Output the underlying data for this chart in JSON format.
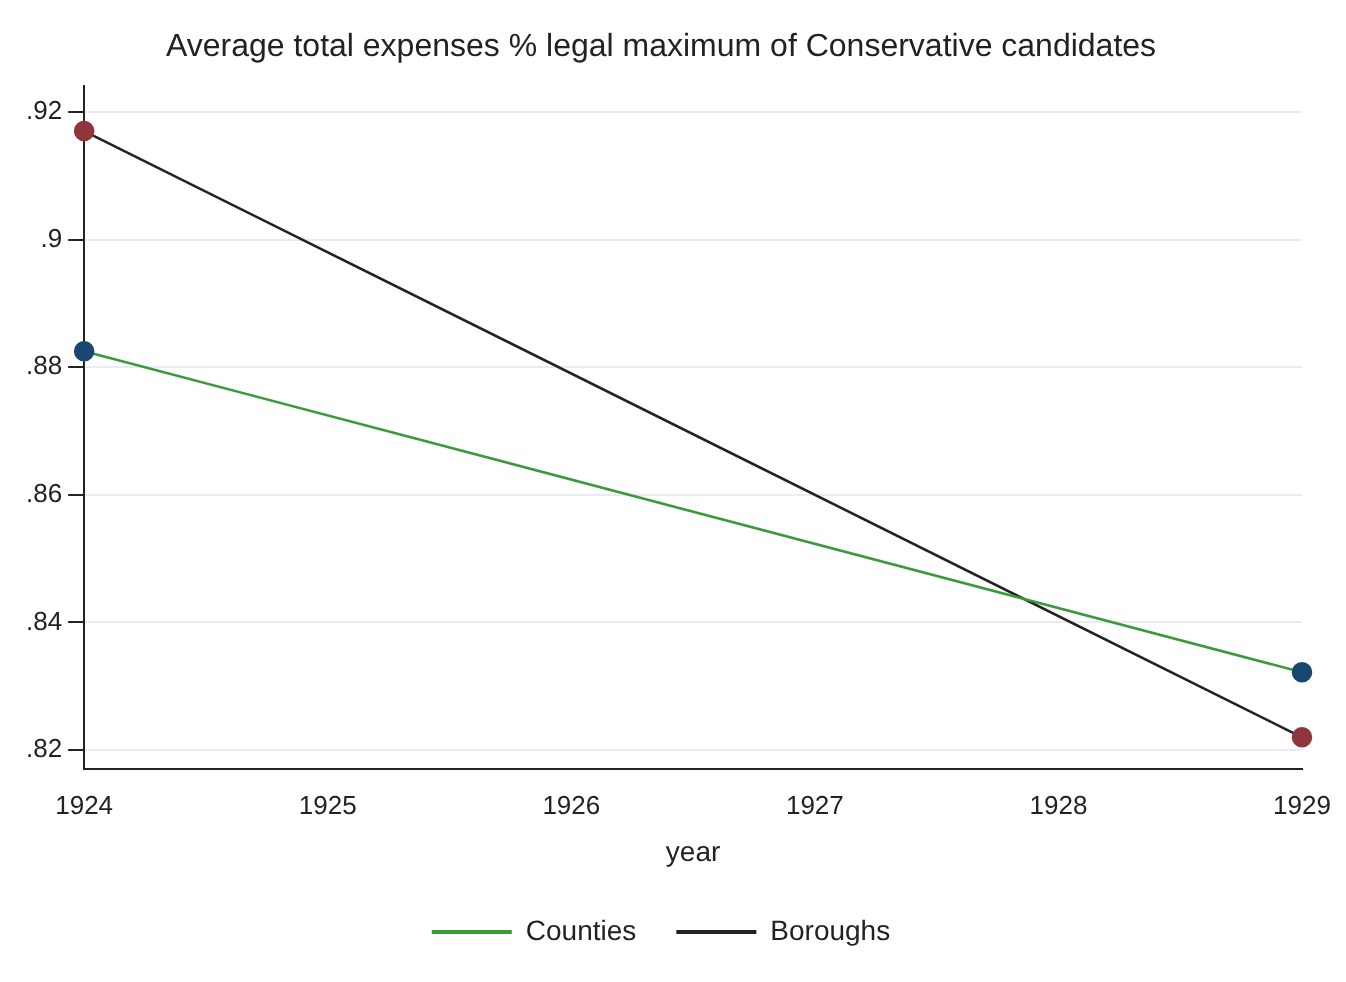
{
  "chart_data": {
    "type": "line",
    "title": "Average total expenses % legal maximum of Conservative candidates",
    "xlabel": "year",
    "x": [
      1924,
      1929
    ],
    "xlim": [
      1924,
      1929
    ],
    "xticks": [
      1924,
      1925,
      1926,
      1927,
      1928,
      1929
    ],
    "ylim": [
      0.817,
      0.924
    ],
    "yticks": [
      {
        "value": 0.82,
        "label": ".82"
      },
      {
        "value": 0.84,
        "label": ".84"
      },
      {
        "value": 0.86,
        "label": ".86"
      },
      {
        "value": 0.88,
        "label": ".88"
      },
      {
        "value": 0.9,
        "label": ".9"
      },
      {
        "value": 0.92,
        "label": ".92"
      }
    ],
    "series": [
      {
        "name": "Counties",
        "color": "#3a9a3a",
        "colors": [
          "#1a476f",
          "#1a476f"
        ],
        "values": [
          0.8825,
          0.8322
        ]
      },
      {
        "name": "Boroughs",
        "color": "#222222",
        "colors": [
          "#90353b",
          "#90353b"
        ],
        "values": [
          0.917,
          0.822
        ]
      }
    ],
    "grid": "y",
    "legend": "bottom",
    "marker": "circle"
  }
}
